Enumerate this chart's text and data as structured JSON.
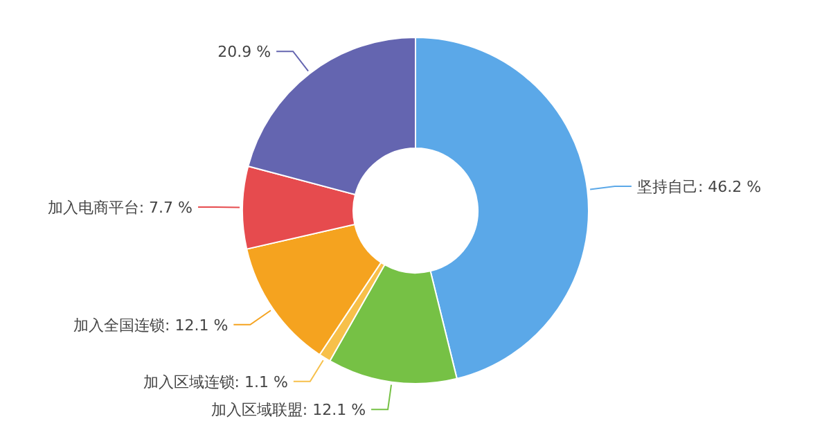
{
  "chart_data": {
    "type": "donut",
    "categories": [
      "坚持自己",
      "加入区域联盟",
      "加入区域连锁",
      "加入全国连锁",
      "加入电商平台",
      null
    ],
    "values": [
      46.2,
      12.1,
      1.1,
      12.1,
      7.7,
      20.9
    ],
    "colors": [
      "#5ba8e8",
      "#76c145",
      "#f7c04a",
      "#f5a31f",
      "#e64b4e",
      "#6465b0"
    ],
    "value_labels": [
      "46.2 %",
      "12.1 %",
      "1.1 %",
      "12.1 %",
      "7.7 %",
      "20.9 %"
    ]
  }
}
